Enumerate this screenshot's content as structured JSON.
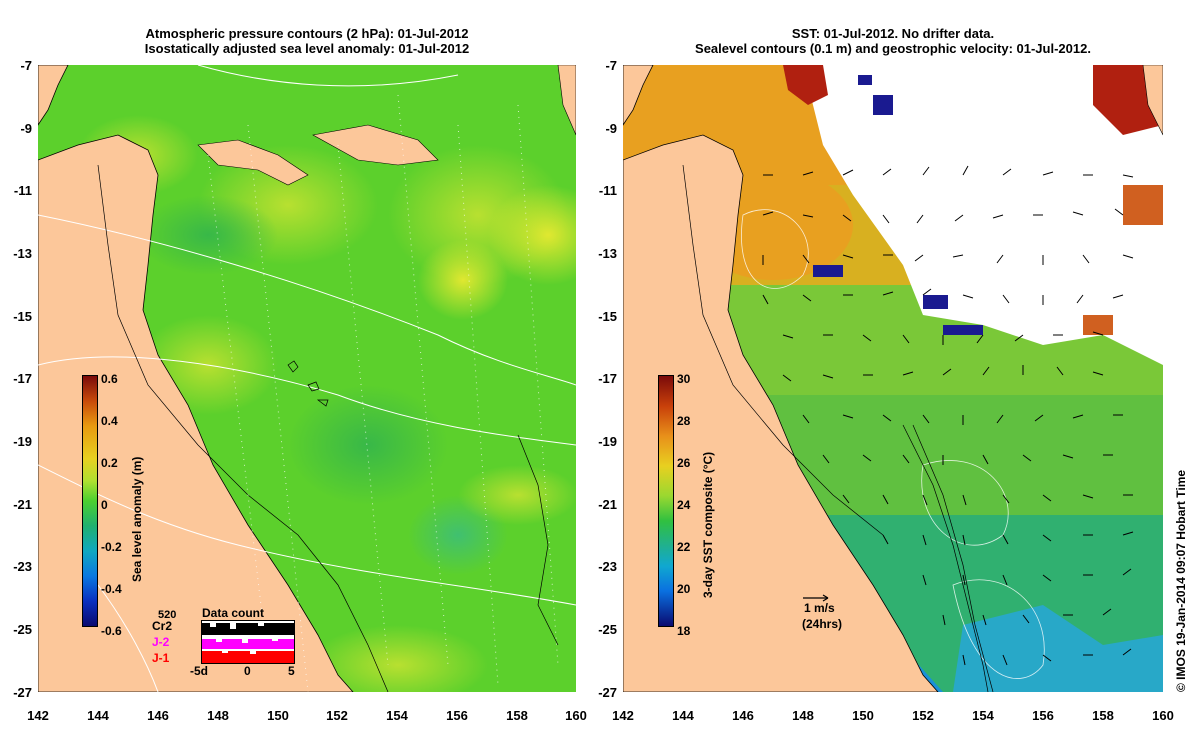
{
  "left_panel": {
    "title_line1": "Atmospheric pressure contours (2 hPa): 01-Jul-2012",
    "title_line2": "Isostatically adjusted sea level anomaly: 01-Jul-2012",
    "colorbar_label": "Sea level anomaly (m)",
    "colorbar_ticks": [
      "0.6",
      "0.4",
      "0.2",
      "0",
      "-0.2",
      "-0.4",
      "-0.6"
    ],
    "data_count": {
      "title": "Data count",
      "max_label": "520",
      "series": [
        "Cr2",
        "J-2",
        "J-1"
      ],
      "series_colors": [
        "#000000",
        "#ff00ff",
        "#ff0000"
      ],
      "x_ticks": [
        "-5d",
        "0",
        "5"
      ]
    }
  },
  "right_panel": {
    "title_line1": "SST: 01-Jul-2012. No drifter data.",
    "title_line2": "Sealevel contours (0.1 m) and geostrophic velocity: 01-Jul-2012.",
    "colorbar_label": "3-day SST composite (°C)",
    "colorbar_ticks": [
      "30",
      "28",
      "26",
      "24",
      "22",
      "20",
      "18"
    ],
    "scale_arrow_label": "1 m/s",
    "scale_arrow_sub": "(24hrs)"
  },
  "axes": {
    "lat_ticks": [
      "-7",
      "-9",
      "-11",
      "-13",
      "-15",
      "-17",
      "-19",
      "-21",
      "-23",
      "-25",
      "-27"
    ],
    "lon_ticks": [
      "142",
      "144",
      "146",
      "148",
      "150",
      "152",
      "154",
      "156",
      "158",
      "160"
    ]
  },
  "footer": {
    "credit": "© IMOS 19-Jan-2014 09:07 Hobart Time"
  },
  "colors": {
    "land": "#fcc79a",
    "ocean_left": "#5fd02a",
    "white": "#ffffff"
  }
}
